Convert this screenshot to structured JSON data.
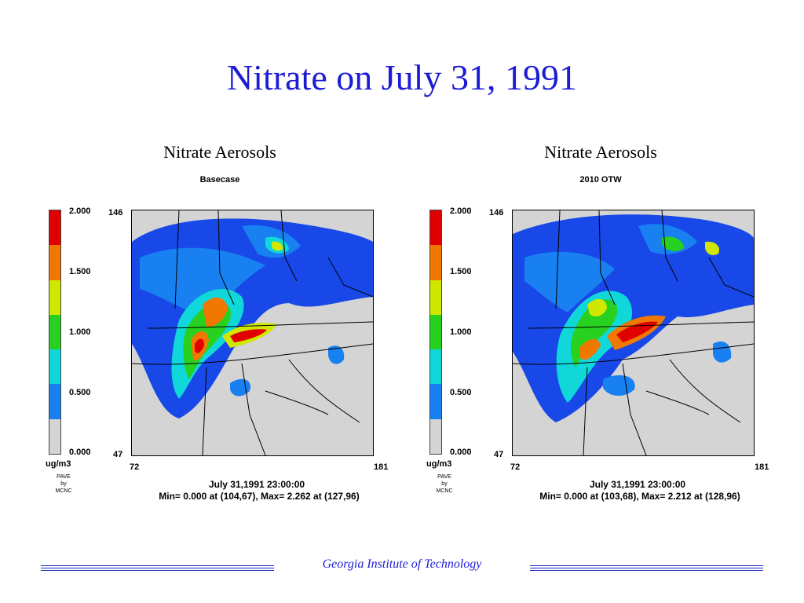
{
  "slide": {
    "title": "Nitrate on July 31, 1991",
    "footer": "Georgia Institute of Technology"
  },
  "colors": {
    "scale": [
      "#e00000",
      "#f07800",
      "#d0e800",
      "#28d020",
      "#10d8d8",
      "#1880f0",
      "#1848e8",
      "#d4d4d4"
    ]
  },
  "panels": [
    {
      "title": "Nitrate Aerosols",
      "subtitle": "Basecase",
      "scale_ticks": [
        "2.000",
        "1.500",
        "1.000",
        "0.500",
        "0.000"
      ],
      "units": "ug/m3",
      "credit": [
        "PAVE",
        "by",
        "MCNC"
      ],
      "y_top": "146",
      "y_bottom": "47",
      "x_left": "72",
      "x_right": "181",
      "timestamp": "July 31,1991 23:00:00",
      "minmax": "Min=   0.000 at (104,67), Max=   2.262 at (127,96)"
    },
    {
      "title": "Nitrate Aerosols",
      "subtitle": "2010 OTW",
      "scale_ticks": [
        "2.000",
        "1.500",
        "1.000",
        "0.500",
        "0.000"
      ],
      "units": "ug/m3",
      "credit": [
        "PAVE",
        "by",
        "MCNC"
      ],
      "y_top": "146",
      "y_bottom": "47",
      "x_left": "72",
      "x_right": "181",
      "timestamp": "July 31,1991 23:00:00",
      "minmax": "Min=   0.000 at (103,68), Max=   2.212 at (128,96)"
    }
  ]
}
